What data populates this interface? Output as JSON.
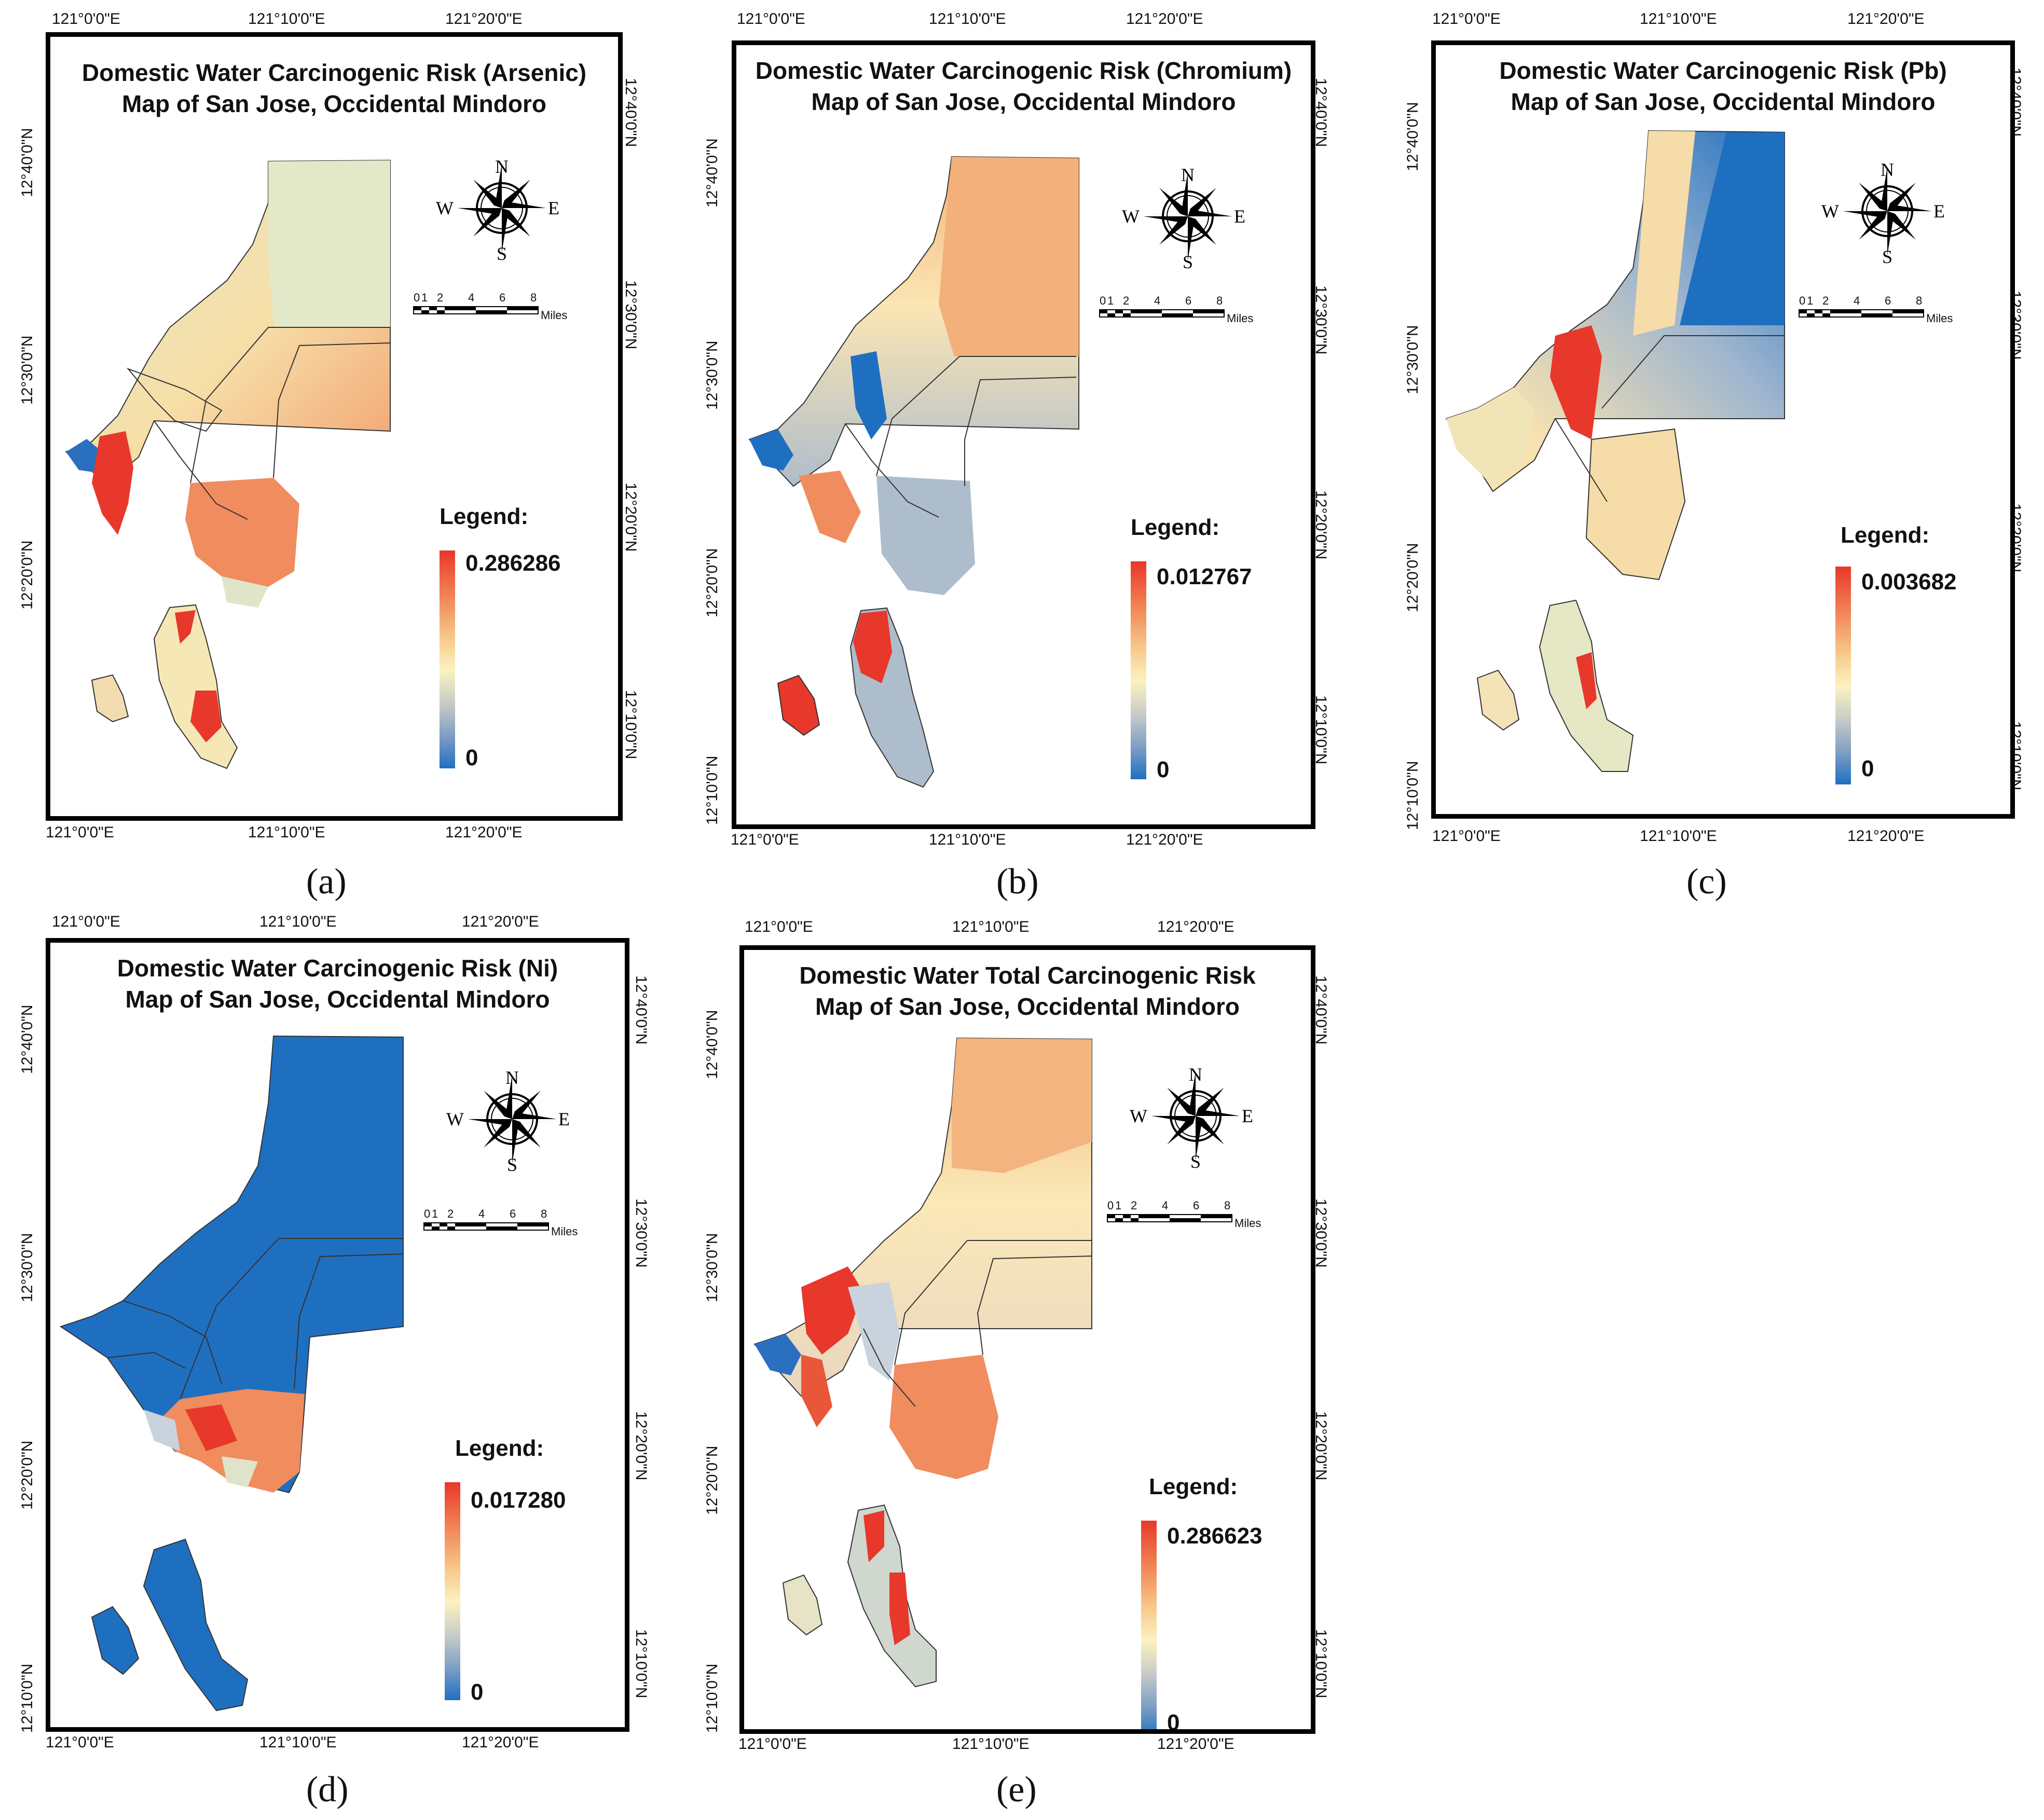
{
  "lon_labels": [
    "121°0'0\"E",
    "121°10'0\"E",
    "121°20'0\"E"
  ],
  "lat_labels": [
    "12°40'0\"N",
    "12°30'0\"N",
    "12°20'0\"N",
    "12°10'0\"N"
  ],
  "compass": {
    "n": "N",
    "s": "S",
    "e": "E",
    "w": "W"
  },
  "scale": {
    "ticks": [
      "0",
      "1",
      "2",
      "4",
      "6",
      "8"
    ],
    "unit": "Miles"
  },
  "legend_title": "Legend:",
  "panels": [
    {
      "caption": "(a)",
      "title_line1": "Domestic Water Carcinogenic Risk (Arsenic)",
      "title_line2": "Map of San Jose, Occidental Mindoro",
      "legend_max": "0.286286",
      "legend_min": "0",
      "max_value": 0.286286,
      "min_value": 0
    },
    {
      "caption": "(b)",
      "title_line1": "Domestic Water Carcinogenic Risk (Chromium)",
      "title_line2": "Map of San Jose, Occidental Mindoro",
      "legend_max": "0.012767",
      "legend_min": "0",
      "max_value": 0.012767,
      "min_value": 0
    },
    {
      "caption": "(c)",
      "title_line1": "Domestic Water Carcinogenic Risk (Pb)",
      "title_line2": "Map of San Jose, Occidental Mindoro",
      "legend_max": "0.003682",
      "legend_min": "0",
      "max_value": 0.003682,
      "min_value": 0
    },
    {
      "caption": "(d)",
      "title_line1": "Domestic Water Carcinogenic Risk (Ni)",
      "title_line2": "Map of San Jose, Occidental Mindoro",
      "legend_max": "0.017280",
      "legend_min": "0",
      "max_value": 0.01728,
      "min_value": 0
    },
    {
      "caption": "(e)",
      "title_line1": "Domestic Water Total Carcinogenic Risk",
      "title_line2": "Map of San Jose, Occidental Mindoro",
      "legend_max": "0.286623",
      "legend_min": "0",
      "max_value": 0.286623,
      "min_value": 0
    }
  ],
  "colors": {
    "high": "#e8372b",
    "mid_high": "#f3a06a",
    "mid": "#fbe7b0",
    "mid_low": "#d9e2c9",
    "low_mid": "#9fb0c8",
    "low": "#1f6fc0",
    "boundary": "#333333"
  }
}
